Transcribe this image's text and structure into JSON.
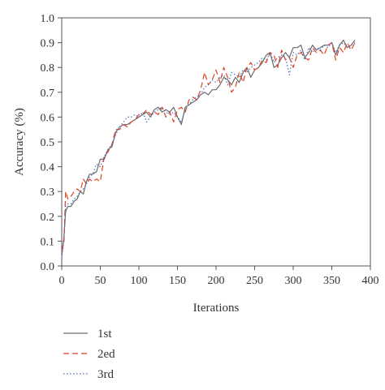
{
  "chart_data": {
    "type": "line",
    "title": "",
    "xlabel": "Iterations",
    "ylabel": "Accuracy (%)",
    "xlim": [
      0,
      400
    ],
    "ylim": [
      0,
      1.0
    ],
    "x_ticks": [
      "0",
      "50",
      "100",
      "150",
      "200",
      "250",
      "300",
      "350",
      "400"
    ],
    "y_ticks": [
      "0.0",
      "0.1",
      "0.2",
      "0.3",
      "0.4",
      "0.5",
      "0.6",
      "0.7",
      "0.8",
      "0.9",
      "1.0"
    ],
    "grid": false,
    "legend_position": "bottom-left",
    "series": [
      {
        "name": "1st",
        "color": "#6b6b6b",
        "dash": "solid",
        "x": [
          0,
          3,
          5,
          8,
          12,
          16,
          20,
          24,
          28,
          32,
          36,
          40,
          45,
          50,
          55,
          60,
          65,
          70,
          75,
          80,
          85,
          90,
          95,
          100,
          105,
          110,
          115,
          120,
          125,
          130,
          135,
          140,
          145,
          150,
          155,
          160,
          165,
          170,
          175,
          180,
          185,
          190,
          195,
          200,
          205,
          210,
          215,
          220,
          225,
          230,
          235,
          240,
          245,
          250,
          255,
          260,
          265,
          270,
          275,
          280,
          285,
          290,
          295,
          300,
          305,
          310,
          315,
          320,
          325,
          330,
          335,
          340,
          345,
          350,
          355,
          360,
          365,
          370,
          375,
          380
        ],
        "y": [
          0.04,
          0.12,
          0.22,
          0.24,
          0.24,
          0.26,
          0.27,
          0.3,
          0.29,
          0.34,
          0.37,
          0.37,
          0.38,
          0.43,
          0.43,
          0.47,
          0.48,
          0.54,
          0.56,
          0.57,
          0.57,
          0.58,
          0.59,
          0.6,
          0.61,
          0.62,
          0.6,
          0.63,
          0.64,
          0.62,
          0.63,
          0.62,
          0.64,
          0.6,
          0.57,
          0.64,
          0.65,
          0.66,
          0.67,
          0.69,
          0.7,
          0.69,
          0.71,
          0.71,
          0.73,
          0.76,
          0.75,
          0.73,
          0.76,
          0.74,
          0.78,
          0.8,
          0.76,
          0.79,
          0.8,
          0.82,
          0.85,
          0.86,
          0.8,
          0.81,
          0.84,
          0.86,
          0.84,
          0.88,
          0.88,
          0.89,
          0.84,
          0.86,
          0.89,
          0.87,
          0.88,
          0.89,
          0.89,
          0.9,
          0.85,
          0.89,
          0.91,
          0.88,
          0.89,
          0.91
        ]
      },
      {
        "name": "2ed",
        "color": "#e0411f",
        "dash": "dashed",
        "x": [
          0,
          3,
          5,
          8,
          12,
          16,
          20,
          24,
          28,
          32,
          36,
          40,
          45,
          50,
          55,
          60,
          65,
          70,
          75,
          80,
          85,
          90,
          95,
          100,
          105,
          110,
          115,
          120,
          125,
          130,
          135,
          140,
          145,
          150,
          155,
          160,
          165,
          170,
          175,
          180,
          185,
          190,
          195,
          200,
          205,
          210,
          215,
          220,
          225,
          230,
          235,
          240,
          245,
          250,
          255,
          260,
          265,
          270,
          275,
          280,
          285,
          290,
          295,
          300,
          305,
          310,
          315,
          320,
          325,
          330,
          335,
          340,
          345,
          350,
          355,
          360,
          365,
          370,
          375,
          380
        ],
        "y": [
          0.06,
          0.1,
          0.3,
          0.27,
          0.28,
          0.3,
          0.31,
          0.3,
          0.35,
          0.33,
          0.35,
          0.34,
          0.35,
          0.34,
          0.44,
          0.46,
          0.49,
          0.55,
          0.55,
          0.57,
          0.56,
          0.58,
          0.59,
          0.61,
          0.61,
          0.63,
          0.61,
          0.62,
          0.61,
          0.64,
          0.6,
          0.62,
          0.58,
          0.63,
          0.64,
          0.62,
          0.67,
          0.68,
          0.67,
          0.71,
          0.78,
          0.73,
          0.75,
          0.79,
          0.74,
          0.8,
          0.76,
          0.7,
          0.72,
          0.78,
          0.74,
          0.8,
          0.82,
          0.79,
          0.8,
          0.83,
          0.82,
          0.86,
          0.85,
          0.8,
          0.87,
          0.83,
          0.84,
          0.8,
          0.85,
          0.86,
          0.84,
          0.83,
          0.88,
          0.86,
          0.87,
          0.85,
          0.89,
          0.9,
          0.83,
          0.88,
          0.86,
          0.9,
          0.87,
          0.9
        ]
      },
      {
        "name": "3rd",
        "color": "#4a6fbe",
        "dash": "dotted",
        "x": [
          0,
          3,
          5,
          8,
          12,
          16,
          20,
          24,
          28,
          32,
          36,
          40,
          45,
          50,
          55,
          60,
          65,
          70,
          75,
          80,
          85,
          90,
          95,
          100,
          105,
          110,
          115,
          120,
          125,
          130,
          135,
          140,
          145,
          150,
          155,
          160,
          165,
          170,
          175,
          180,
          185,
          190,
          195,
          200,
          205,
          210,
          215,
          220,
          225,
          230,
          235,
          240,
          245,
          250,
          255,
          260,
          265,
          270,
          275,
          280,
          285,
          290,
          295,
          300,
          305,
          310,
          315,
          320,
          325,
          330,
          335,
          340,
          345,
          350,
          355,
          360,
          365,
          370,
          375,
          380
        ],
        "y": [
          0.03,
          0.11,
          0.24,
          0.25,
          0.25,
          0.27,
          0.28,
          0.3,
          0.31,
          0.33,
          0.36,
          0.37,
          0.41,
          0.4,
          0.44,
          0.47,
          0.49,
          0.53,
          0.56,
          0.58,
          0.6,
          0.6,
          0.61,
          0.6,
          0.62,
          0.58,
          0.6,
          0.62,
          0.63,
          0.64,
          0.62,
          0.61,
          0.62,
          0.6,
          0.58,
          0.63,
          0.65,
          0.67,
          0.68,
          0.69,
          0.72,
          0.73,
          0.75,
          0.74,
          0.76,
          0.77,
          0.73,
          0.78,
          0.77,
          0.76,
          0.79,
          0.78,
          0.8,
          0.81,
          0.82,
          0.84,
          0.83,
          0.86,
          0.82,
          0.84,
          0.85,
          0.84,
          0.77,
          0.86,
          0.85,
          0.87,
          0.83,
          0.88,
          0.86,
          0.88,
          0.87,
          0.89,
          0.88,
          0.9,
          0.86,
          0.89,
          0.9,
          0.88,
          0.89,
          0.9
        ]
      }
    ]
  }
}
